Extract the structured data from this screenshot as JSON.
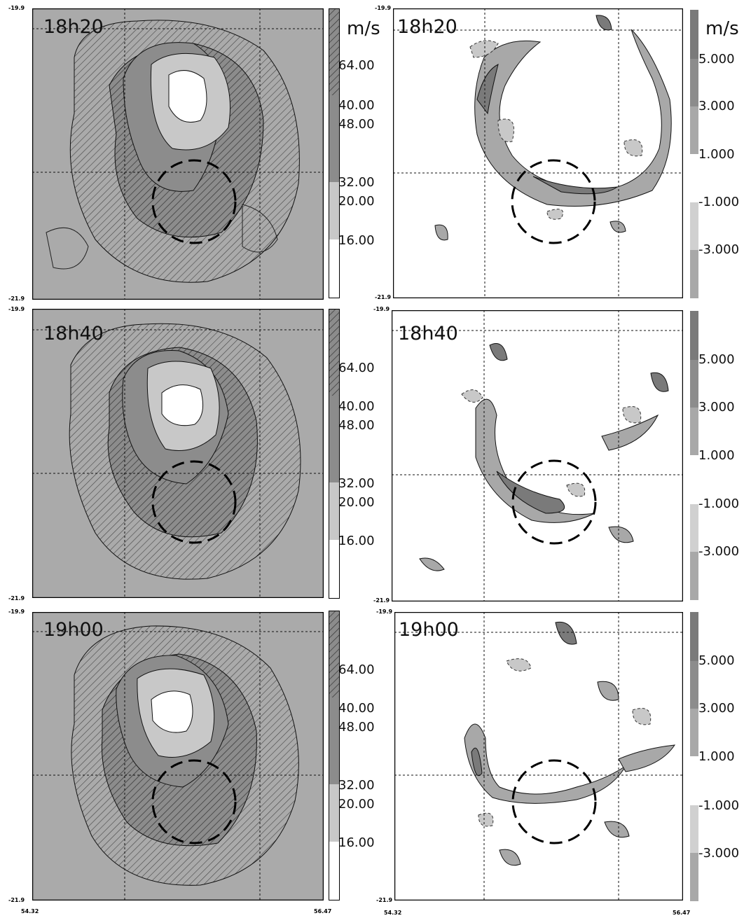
{
  "figure": {
    "unit_label": "m/s",
    "coords": {
      "lat_top": "-19.9",
      "lat_bottom": "-21.9",
      "lon_left": "54.32",
      "lon_right": "56.47"
    },
    "rows": [
      {
        "time": "18h20"
      },
      {
        "time": "18h40"
      },
      {
        "time": "19h00"
      }
    ],
    "left_colorbar": {
      "levels": [
        "64.00",
        "40.00",
        "48.00",
        "32.00",
        "20.00",
        "16.00"
      ]
    },
    "right_colorbar": {
      "pos_levels": [
        "5.000",
        "3.000",
        "1.000"
      ],
      "neg_levels": [
        "-1.000",
        "-3.000"
      ]
    }
  },
  "colors": {
    "outer": "#aaaaaa",
    "band": "#8c8c8c",
    "eyewall": "#c8c8c8",
    "eye": "#ffffff",
    "updraft_dark": "#7a7a7a",
    "updraft_light": "#a8a8a8",
    "downdraft": "#c8c8c8"
  }
}
